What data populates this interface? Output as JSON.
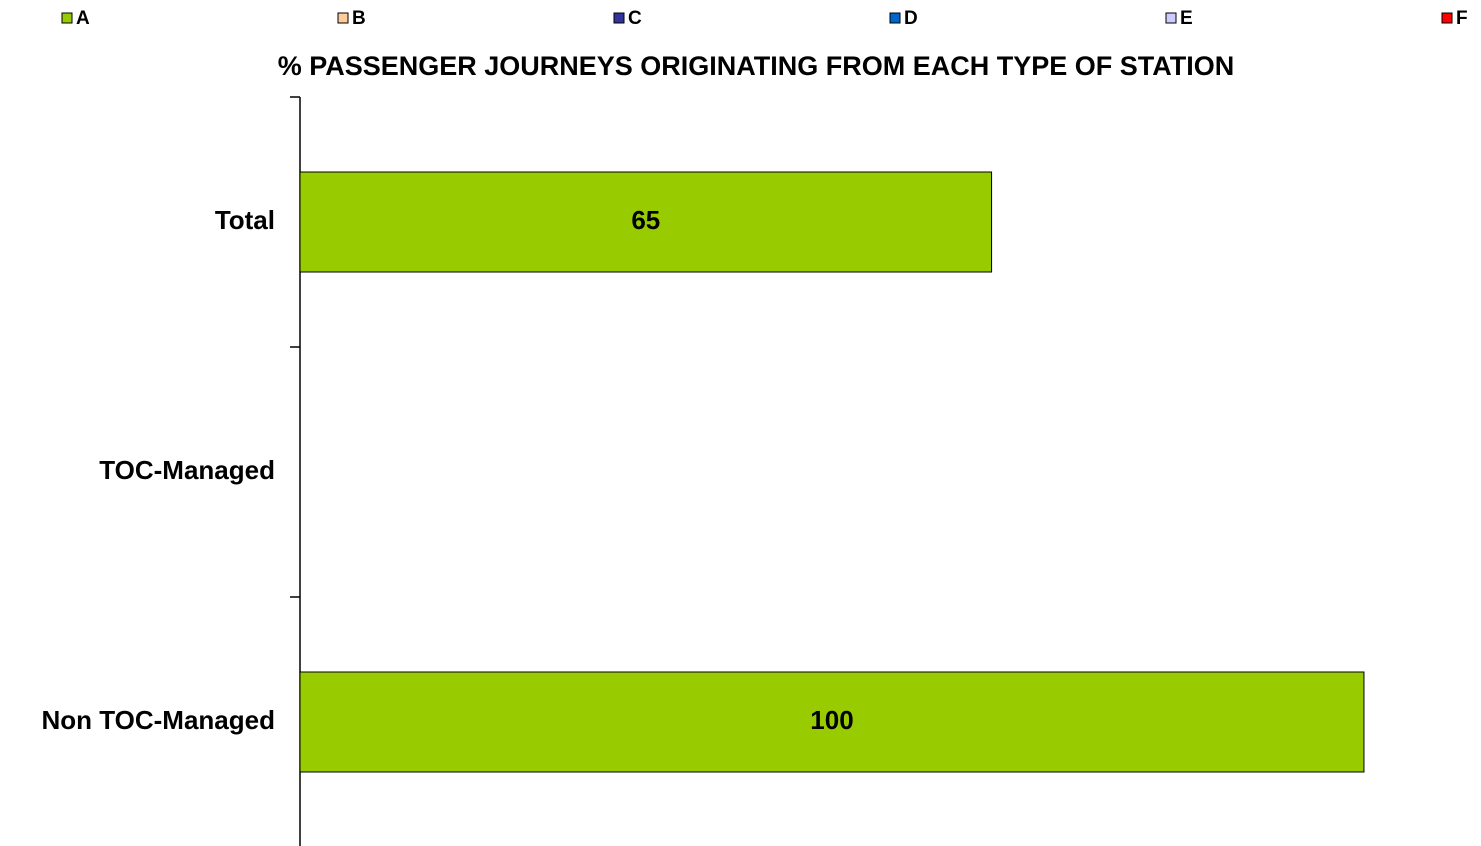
{
  "chart_data": {
    "type": "stacked_bar_horizontal",
    "title": "% PASSENGER JOURNEYS ORIGINATING FROM EACH TYPE OF STATION",
    "categories": [
      "Total",
      "TOC-Managed",
      "Non TOC-Managed"
    ],
    "series": [
      {
        "name": "A",
        "color": "#99cc00",
        "values": [
          65,
          null,
          100
        ]
      },
      {
        "name": "B",
        "color": "#ffcc99",
        "values": [
          null,
          null,
          null
        ]
      },
      {
        "name": "C",
        "color": "#333399",
        "values": [
          null,
          null,
          null
        ]
      },
      {
        "name": "D",
        "color": "#0066cc",
        "values": [
          null,
          null,
          null
        ]
      },
      {
        "name": "E",
        "color": "#ccccff",
        "values": [
          null,
          null,
          null
        ]
      },
      {
        "name": "F",
        "color": "#ff0000",
        "values": [
          null,
          null,
          null
        ]
      }
    ],
    "xlim": [
      0,
      111
    ],
    "legend": "top"
  }
}
